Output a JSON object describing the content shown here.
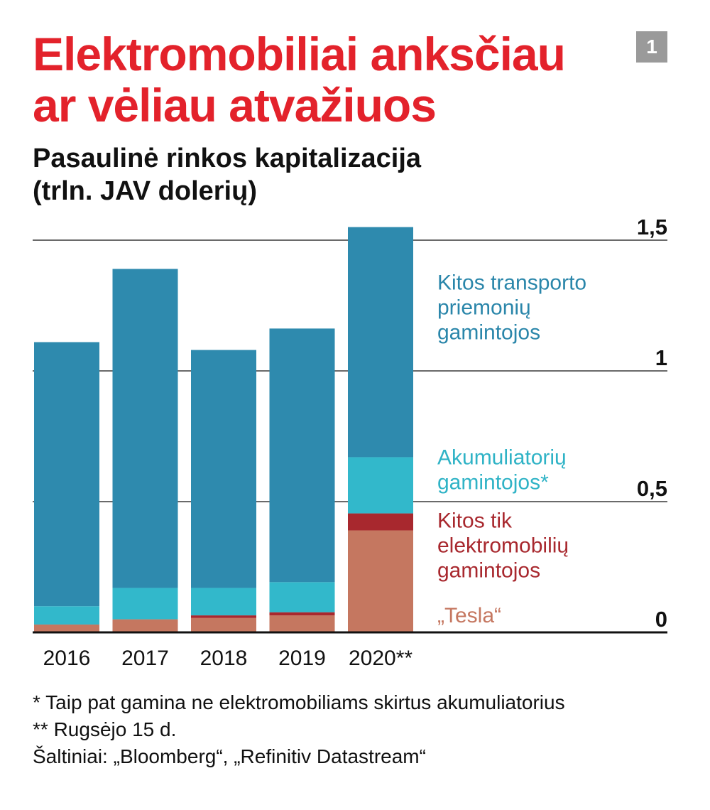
{
  "title_lines": [
    "Elektromobiliai anksčiau",
    "ar vėliau atvažiuos"
  ],
  "page_number": "1",
  "subtitle_lines": [
    "Pasaulinė rinkos kapitalizacija",
    "(trln. JAV dolerių)"
  ],
  "chart_data": {
    "type": "bar",
    "stacked": true,
    "title": "Pasaulinė rinkos kapitalizacija (trln. JAV dolerių)",
    "categories": [
      "2016",
      "2017",
      "2018",
      "2019",
      "2020**"
    ],
    "series": [
      {
        "name": "„Tesla“",
        "color": "#c57760",
        "values": [
          0.03,
          0.05,
          0.055,
          0.065,
          0.39
        ]
      },
      {
        "name": "Kitos tik elektromobilių gamintojos",
        "color": "#a8282e",
        "values": [
          0.0,
          0.0,
          0.01,
          0.012,
          0.065
        ]
      },
      {
        "name": "Akumuliatorių gamintojos*",
        "color": "#32b8cb",
        "values": [
          0.07,
          0.12,
          0.105,
          0.115,
          0.215
        ]
      },
      {
        "name": "Kitos transporto priemonių gamintojos",
        "color": "#2e8aae",
        "values": [
          1.01,
          1.22,
          0.91,
          0.97,
          0.88
        ]
      }
    ],
    "legend_labels": [
      {
        "series": "Kitos transporto priemonių gamintojos",
        "lines": [
          "Kitos transporto",
          "priemonių",
          "gamintojos"
        ],
        "color": "#2a86aa"
      },
      {
        "series": "Akumuliatorių gamintojos*",
        "lines": [
          "Akumuliatorių",
          "gamintojos*"
        ],
        "color": "#2fb3c6"
      },
      {
        "series": "Kitos tik elektromobilių gamintojos",
        "lines": [
          "Kitos tik",
          "elektromobilių",
          "gamintojos"
        ],
        "color": "#a8282e"
      },
      {
        "series": "„Tesla“",
        "lines": [
          "„Tesla“"
        ],
        "color": "#c57760"
      }
    ],
    "yticks": [
      0,
      0.5,
      1,
      1.5
    ],
    "ytick_labels": [
      "0",
      "0,5",
      "1",
      "1,5"
    ],
    "ylim": [
      0,
      1.5
    ],
    "xlabel": "",
    "ylabel": "",
    "grid": true
  },
  "footnotes": [
    "* Taip pat gamina ne elektromobiliams skirtus akumuliatorius",
    "** Rugsėjo 15 d.",
    "Šaltiniai: „Bloomberg“, „Refinitiv Datastream“"
  ]
}
